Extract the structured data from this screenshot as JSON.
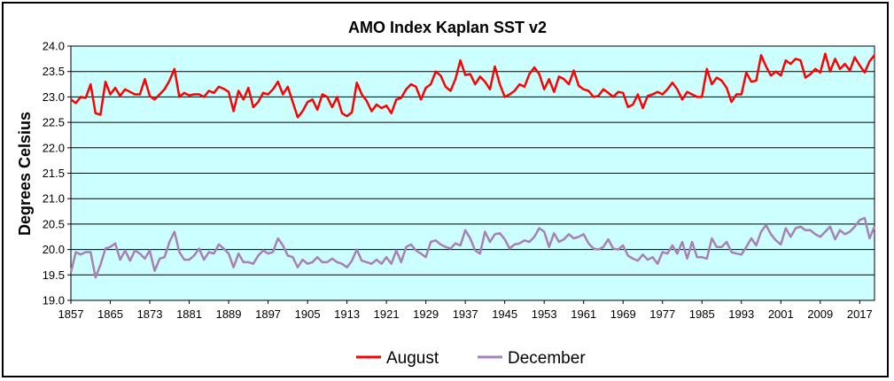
{
  "chart_data": {
    "type": "line",
    "title": "AMO Index Kaplan SST v2",
    "xlabel": "",
    "ylabel": "Degrees Celsius",
    "xlim": [
      1857,
      2020
    ],
    "ylim": [
      19.0,
      24.0
    ],
    "yticks": [
      "19.0",
      "19.5",
      "20.0",
      "20.5",
      "21.0",
      "21.5",
      "22.0",
      "22.5",
      "23.0",
      "23.5",
      "24.0"
    ],
    "xticks": [
      "1857",
      "1865",
      "1873",
      "1881",
      "1889",
      "1897",
      "1905",
      "1913",
      "1921",
      "1929",
      "1937",
      "1945",
      "1953",
      "1961",
      "1969",
      "1977",
      "1985",
      "1993",
      "2001",
      "2009",
      "2017"
    ],
    "grid": true,
    "legend_position": "bottom",
    "background_color": "#ccffff",
    "series": [
      {
        "name": "August",
        "color": "#ff0000",
        "start_year": 1857,
        "values": [
          22.95,
          22.88,
          23.0,
          22.98,
          23.25,
          22.68,
          22.65,
          23.3,
          23.05,
          23.18,
          23.02,
          23.15,
          23.1,
          23.05,
          23.05,
          23.35,
          23.02,
          22.95,
          23.05,
          23.15,
          23.32,
          23.55,
          23.0,
          23.08,
          23.03,
          23.05,
          23.05,
          23.0,
          23.12,
          23.08,
          23.2,
          23.16,
          23.1,
          22.72,
          23.12,
          22.95,
          23.18,
          22.8,
          22.9,
          23.08,
          23.05,
          23.15,
          23.3,
          23.05,
          23.2,
          22.9,
          22.6,
          22.72,
          22.9,
          22.95,
          22.75,
          23.05,
          23.0,
          22.8,
          23.0,
          22.68,
          22.62,
          22.7,
          23.28,
          23.05,
          22.92,
          22.72,
          22.85,
          22.78,
          22.83,
          22.68,
          22.95,
          22.98,
          23.15,
          23.25,
          23.2,
          22.95,
          23.18,
          23.25,
          23.5,
          23.42,
          23.2,
          23.12,
          23.35,
          23.72,
          23.43,
          23.45,
          23.25,
          23.4,
          23.3,
          23.15,
          23.6,
          23.25,
          23.0,
          23.05,
          23.12,
          23.25,
          23.2,
          23.45,
          23.58,
          23.45,
          23.15,
          23.35,
          23.1,
          23.4,
          23.35,
          23.25,
          23.52,
          23.22,
          23.15,
          23.12,
          23.0,
          23.02,
          23.15,
          23.08,
          23.0,
          23.1,
          23.08,
          22.8,
          22.85,
          23.05,
          22.78,
          23.02,
          23.05,
          23.1,
          23.05,
          23.15,
          23.28,
          23.15,
          22.95,
          23.1,
          23.05,
          23.0,
          23.0,
          23.55,
          23.25,
          23.38,
          23.32,
          23.18,
          22.9,
          23.05,
          23.05,
          23.48,
          23.3,
          23.32,
          23.82,
          23.6,
          23.42,
          23.5,
          23.42,
          23.72,
          23.65,
          23.75,
          23.72,
          23.38,
          23.45,
          23.55,
          23.48,
          23.85,
          23.5,
          23.75,
          23.55,
          23.65,
          23.52,
          23.78,
          23.62,
          23.48,
          23.7,
          23.82
        ]
      },
      {
        "name": "December",
        "color": "#a97fb8",
        "start_year": 1857,
        "values": [
          19.55,
          19.95,
          19.9,
          19.95,
          19.95,
          19.45,
          19.7,
          20.02,
          20.05,
          20.12,
          19.8,
          19.98,
          19.78,
          19.98,
          19.92,
          19.82,
          19.98,
          19.58,
          19.82,
          19.85,
          20.15,
          20.35,
          19.95,
          19.8,
          19.8,
          19.88,
          20.02,
          19.8,
          19.95,
          19.92,
          20.1,
          20.02,
          19.92,
          19.65,
          19.92,
          19.75,
          19.75,
          19.72,
          19.88,
          19.98,
          19.92,
          19.95,
          20.22,
          20.08,
          19.88,
          19.85,
          19.65,
          19.8,
          19.72,
          19.75,
          19.85,
          19.75,
          19.75,
          19.82,
          19.75,
          19.72,
          19.65,
          19.78,
          20.0,
          19.78,
          19.75,
          19.72,
          19.8,
          19.72,
          19.85,
          19.72,
          19.98,
          19.75,
          20.05,
          20.1,
          19.98,
          19.92,
          19.85,
          20.15,
          20.18,
          20.1,
          20.05,
          20.02,
          20.12,
          20.08,
          20.38,
          20.22,
          19.98,
          19.92,
          20.35,
          20.15,
          20.3,
          20.32,
          20.2,
          20.02,
          20.1,
          20.12,
          20.18,
          20.15,
          20.25,
          20.42,
          20.35,
          20.05,
          20.32,
          20.15,
          20.2,
          20.3,
          20.22,
          20.25,
          20.3,
          20.12,
          20.02,
          20.0,
          20.05,
          20.2,
          20.02,
          20.0,
          20.08,
          19.88,
          19.82,
          19.78,
          19.9,
          19.8,
          19.85,
          19.72,
          19.95,
          19.92,
          20.08,
          19.92,
          20.15,
          19.82,
          20.15,
          19.85,
          19.85,
          19.82,
          20.22,
          20.05,
          20.05,
          20.15,
          19.95,
          19.92,
          19.9,
          20.05,
          20.22,
          20.08,
          20.35,
          20.48,
          20.3,
          20.18,
          20.1,
          20.42,
          20.25,
          20.42,
          20.45,
          20.38,
          20.38,
          20.3,
          20.25,
          20.35,
          20.45,
          20.2,
          20.38,
          20.3,
          20.35,
          20.45,
          20.58,
          20.62,
          20.22,
          20.45
        ]
      }
    ]
  }
}
